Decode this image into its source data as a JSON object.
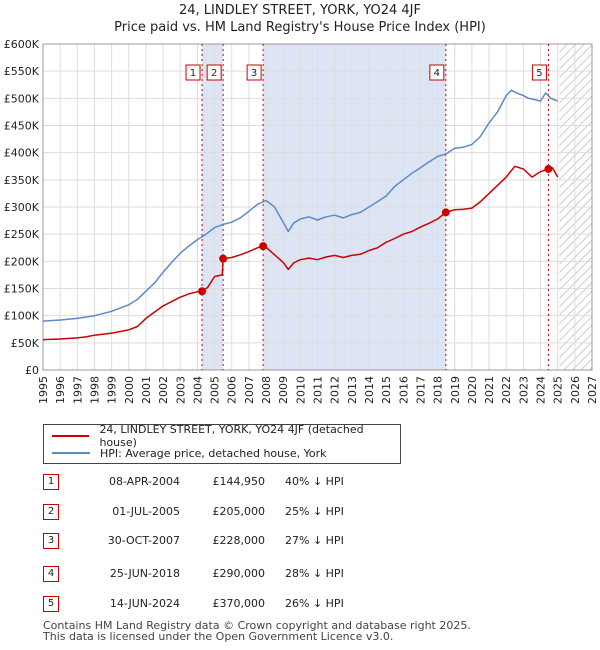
{
  "title_lines": [
    "24, LINDLEY STREET, YORK, YO24 4JF",
    "Price paid vs. HM Land Registry's House Price Index (HPI)"
  ],
  "colors": {
    "property": "#cc0000",
    "hpi": "#5b8bc5",
    "grid": "#dddddd",
    "shade": "#dde5f5",
    "marker_line": "#cc0000"
  },
  "chart_data": {
    "type": "line",
    "title": "24, LINDLEY STREET, YORK, YO24 4JF — Price paid vs. HM Land Registry's House Price Index (HPI)",
    "xlim": [
      1995,
      2027
    ],
    "ylim": [
      0,
      600000
    ],
    "x_ticks": [
      1995,
      1996,
      1997,
      1998,
      1999,
      2000,
      2001,
      2002,
      2003,
      2004,
      2005,
      2006,
      2007,
      2008,
      2009,
      2010,
      2011,
      2012,
      2013,
      2014,
      2015,
      2016,
      2017,
      2018,
      2019,
      2020,
      2021,
      2022,
      2023,
      2024,
      2025,
      2026,
      2027
    ],
    "y_ticks": [
      0,
      50000,
      100000,
      150000,
      200000,
      250000,
      300000,
      350000,
      400000,
      450000,
      500000,
      550000,
      600000
    ],
    "y_tick_labels": [
      "£0",
      "£50K",
      "£100K",
      "£150K",
      "£200K",
      "£250K",
      "£300K",
      "£350K",
      "£400K",
      "£450K",
      "£500K",
      "£550K",
      "£600K"
    ],
    "grid": true,
    "legend_position": "below",
    "shaded_spans": [
      [
        2004.27,
        2005.5
      ],
      [
        2007.83,
        2018.48
      ]
    ],
    "hatched_from": 2025.1,
    "series": [
      {
        "name": "24, LINDLEY STREET, YORK, YO24 4JF (detached house)",
        "x": [
          1995,
          1996,
          1997,
          1997.5,
          1998,
          1999,
          2000,
          2000.5,
          2001,
          2002,
          2003,
          2003.5,
          2004,
          2004.27,
          2004.6,
          2005,
          2005.45,
          2005.5,
          2006,
          2006.5,
          2007,
          2007.5,
          2007.83,
          2008,
          2008.5,
          2009,
          2009.3,
          2009.6,
          2010,
          2010.5,
          2011,
          2011.5,
          2012,
          2012.5,
          2013,
          2013.5,
          2014,
          2014.5,
          2015,
          2015.5,
          2016,
          2016.5,
          2017,
          2017.5,
          2018,
          2018.48,
          2019,
          2019.5,
          2020,
          2020.5,
          2021,
          2021.5,
          2022,
          2022.5,
          2023,
          2023.5,
          2024,
          2024.46,
          2024.7,
          2025
        ],
        "y": [
          56000,
          57000,
          59000,
          61000,
          64000,
          68000,
          74000,
          80000,
          95000,
          118000,
          134000,
          140000,
          144000,
          144950,
          152000,
          172000,
          175000,
          205000,
          207000,
          212000,
          218000,
          225000,
          228000,
          226000,
          212000,
          198000,
          185000,
          197000,
          203000,
          206000,
          203000,
          208000,
          211000,
          207000,
          211000,
          213000,
          220000,
          225000,
          235000,
          242000,
          250000,
          255000,
          263000,
          270000,
          278000,
          290000,
          295000,
          296000,
          298000,
          310000,
          325000,
          340000,
          355000,
          375000,
          370000,
          355000,
          365000,
          370000,
          372000,
          355000
        ]
      },
      {
        "name": "HPI: Average price, detached house, York",
        "x": [
          1995,
          1996,
          1997,
          1998,
          1999,
          2000,
          2000.5,
          2001,
          2001.5,
          2002,
          2002.5,
          2003,
          2003.5,
          2004,
          2004.5,
          2005,
          2005.5,
          2006,
          2006.5,
          2007,
          2007.5,
          2008,
          2008.5,
          2009,
          2009.3,
          2009.6,
          2010,
          2010.5,
          2011,
          2011.5,
          2012,
          2012.5,
          2013,
          2013.5,
          2014,
          2014.5,
          2015,
          2015.5,
          2016,
          2016.5,
          2017,
          2017.5,
          2018,
          2018.5,
          2019,
          2019.5,
          2020,
          2020.5,
          2021,
          2021.5,
          2022,
          2022.3,
          2022.6,
          2023,
          2023.3,
          2023.6,
          2024,
          2024.3,
          2024.6,
          2025
        ],
        "y": [
          90000,
          92000,
          95000,
          100000,
          108000,
          120000,
          130000,
          145000,
          160000,
          180000,
          198000,
          215000,
          228000,
          240000,
          250000,
          262000,
          268000,
          272000,
          280000,
          292000,
          305000,
          312000,
          300000,
          272000,
          255000,
          270000,
          278000,
          282000,
          276000,
          282000,
          285000,
          280000,
          286000,
          290000,
          300000,
          310000,
          320000,
          338000,
          350000,
          362000,
          372000,
          383000,
          393000,
          398000,
          408000,
          410000,
          415000,
          430000,
          455000,
          475000,
          505000,
          515000,
          510000,
          505000,
          500000,
          498000,
          495000,
          510000,
          500000,
          495000
        ]
      }
    ],
    "sale_markers": [
      {
        "n": "1",
        "x": 2004.27,
        "y": 144950
      },
      {
        "n": "2",
        "x": 2005.5,
        "y": 205000
      },
      {
        "n": "3",
        "x": 2007.83,
        "y": 228000
      },
      {
        "n": "4",
        "x": 2018.48,
        "y": 290000
      },
      {
        "n": "5",
        "x": 2024.46,
        "y": 370000
      }
    ]
  },
  "legend": {
    "property_label": "24, LINDLEY STREET, YORK, YO24 4JF (detached house)",
    "hpi_label": "HPI: Average price, detached house, York"
  },
  "sales": [
    {
      "n": "1",
      "date": "08-APR-2004",
      "price": "£144,950",
      "hpi": "40% ↓ HPI"
    },
    {
      "n": "2",
      "date": "01-JUL-2005",
      "price": "£205,000",
      "hpi": "25% ↓ HPI"
    },
    {
      "n": "3",
      "date": "30-OCT-2007",
      "price": "£228,000",
      "hpi": "27% ↓ HPI"
    },
    {
      "n": "4",
      "date": "25-JUN-2018",
      "price": "£290,000",
      "hpi": "28% ↓ HPI"
    },
    {
      "n": "5",
      "date": "14-JUN-2024",
      "price": "£370,000",
      "hpi": "26% ↓ HPI"
    }
  ],
  "footer_lines": [
    "Contains HM Land Registry data © Crown copyright and database right 2025.",
    "This data is licensed under the Open Government Licence v3.0."
  ]
}
